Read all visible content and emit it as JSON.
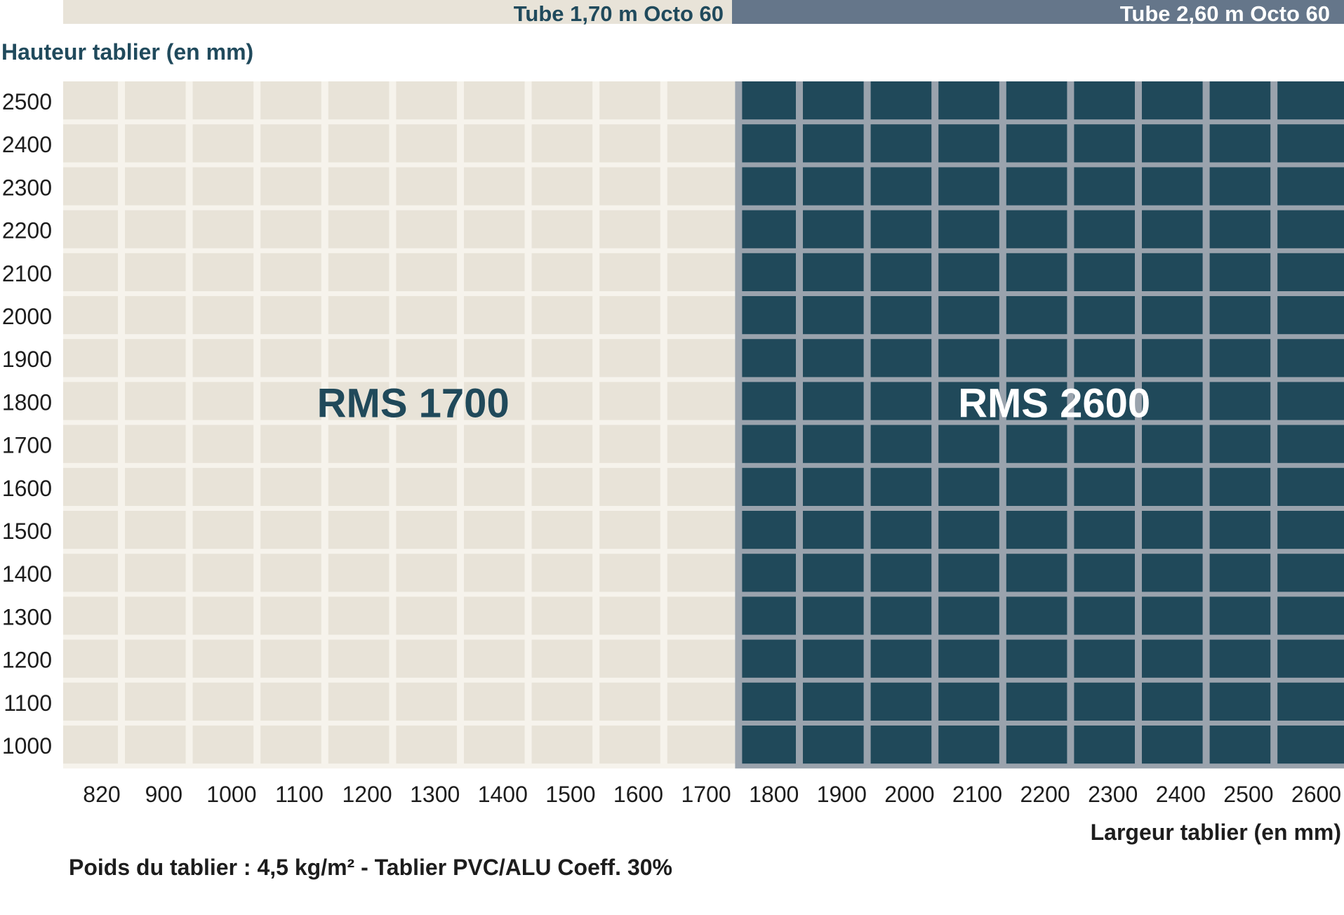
{
  "header": {
    "left_band_label": "Tube 1,70 m Octo 60",
    "right_band_label": "Tube 2,60 m Octo 60"
  },
  "y_axis_title": "Hauteur tablier (en mm)",
  "x_axis_title": "Largeur tablier (en mm)",
  "footer": {
    "note": "Poids du tablier : 4,5 kg/m²  -  Tablier PVC/ALU Coeff. 30%"
  },
  "colors": {
    "light_region": "#e8e3d8",
    "light_grid": "#f6f3ec",
    "dark_region": "#20495a",
    "dark_grid": "#9aa3ad",
    "title_blue": "#204a5c",
    "band_right": "#65768a"
  },
  "chart_data": {
    "type": "heatmap",
    "title": "",
    "xlabel": "Largeur tablier (en mm)",
    "ylabel": "Hauteur tablier (en mm)",
    "x": [
      820,
      900,
      1000,
      1100,
      1200,
      1300,
      1400,
      1500,
      1600,
      1700,
      1800,
      1900,
      2000,
      2100,
      2200,
      2300,
      2400,
      2500,
      2600
    ],
    "y": [
      2500,
      2400,
      2300,
      2200,
      2100,
      2000,
      1900,
      1800,
      1700,
      1600,
      1500,
      1400,
      1300,
      1200,
      1100,
      1000
    ],
    "regions": [
      {
        "name": "RMS 1700",
        "x_min": 820,
        "x_max": 1700,
        "y_min": 1000,
        "y_max": 2500,
        "tube": "Tube 1,70 m Octo 60",
        "color": "#e8e3d8",
        "label_color": "#20495a"
      },
      {
        "name": "RMS 2600",
        "x_min": 1800,
        "x_max": 2600,
        "y_min": 1000,
        "y_max": 2500,
        "tube": "Tube 2,60 m Octo 60",
        "color": "#20495a",
        "label_color": "#ffffff"
      }
    ],
    "grid": true
  }
}
